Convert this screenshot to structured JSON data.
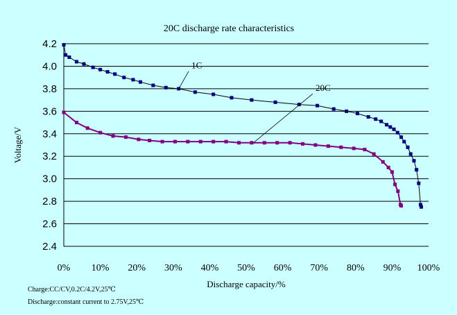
{
  "chart_data": {
    "type": "line",
    "title": "20C discharge rate characteristics",
    "xlabel": "Discharge capacity/%",
    "ylabel": "Voltage/V",
    "xlim": [
      0,
      100
    ],
    "ylim": [
      2.4,
      4.2
    ],
    "x_ticks": [
      "0%",
      "10%",
      "20%",
      "30%",
      "40%",
      "50%",
      "60%",
      "70%",
      "80%",
      "90%",
      "100%"
    ],
    "y_ticks": [
      "4.2",
      "4.0",
      "3.8",
      "3.6",
      "3.4",
      "3.2",
      "3.0",
      "2.8",
      "2.6",
      "2.4"
    ],
    "grid": "horizontal",
    "series": [
      {
        "name": "1C",
        "color": "#000080",
        "marker": "square",
        "points": [
          [
            0.0,
            4.19
          ],
          [
            0.5,
            4.1
          ],
          [
            1.5,
            4.08
          ],
          [
            3.5,
            4.04
          ],
          [
            5.5,
            4.02
          ],
          [
            8,
            3.99
          ],
          [
            10,
            3.97
          ],
          [
            12,
            3.95
          ],
          [
            14,
            3.93
          ],
          [
            16.5,
            3.9
          ],
          [
            19,
            3.88
          ],
          [
            21,
            3.86
          ],
          [
            24.5,
            3.83
          ],
          [
            28,
            3.81
          ],
          [
            31.5,
            3.8
          ],
          [
            36,
            3.77
          ],
          [
            41,
            3.75
          ],
          [
            46,
            3.72
          ],
          [
            51.5,
            3.7
          ],
          [
            58,
            3.68
          ],
          [
            64.5,
            3.66
          ],
          [
            69.5,
            3.65
          ],
          [
            74,
            3.62
          ],
          [
            77.5,
            3.6
          ],
          [
            80.5,
            3.58
          ],
          [
            83.5,
            3.55
          ],
          [
            85.5,
            3.53
          ],
          [
            87,
            3.51
          ],
          [
            88.5,
            3.48
          ],
          [
            89.5,
            3.46
          ],
          [
            90.5,
            3.44
          ],
          [
            91.5,
            3.41
          ],
          [
            92.5,
            3.37
          ],
          [
            93.3,
            3.33
          ],
          [
            94.3,
            3.28
          ],
          [
            95.1,
            3.22
          ],
          [
            96,
            3.16
          ],
          [
            96.7,
            3.08
          ],
          [
            97.3,
            2.96
          ],
          [
            97.8,
            2.77
          ],
          [
            98.0,
            2.75
          ]
        ]
      },
      {
        "name": "20C",
        "color": "#800080",
        "marker": "square",
        "points": [
          [
            0.0,
            3.59
          ],
          [
            3.5,
            3.5
          ],
          [
            6.5,
            3.45
          ],
          [
            10,
            3.41
          ],
          [
            13.5,
            3.38
          ],
          [
            17,
            3.37
          ],
          [
            20.5,
            3.35
          ],
          [
            23.5,
            3.34
          ],
          [
            27,
            3.33
          ],
          [
            30.5,
            3.33
          ],
          [
            34,
            3.33
          ],
          [
            37.5,
            3.33
          ],
          [
            41,
            3.33
          ],
          [
            44.5,
            3.33
          ],
          [
            48,
            3.32
          ],
          [
            51.5,
            3.32
          ],
          [
            55,
            3.32
          ],
          [
            58.5,
            3.32
          ],
          [
            62,
            3.32
          ],
          [
            65.5,
            3.31
          ],
          [
            69,
            3.3
          ],
          [
            72.5,
            3.29
          ],
          [
            76,
            3.28
          ],
          [
            79.5,
            3.27
          ],
          [
            82.5,
            3.26
          ],
          [
            85,
            3.22
          ],
          [
            87.5,
            3.15
          ],
          [
            89,
            3.1
          ],
          [
            90,
            3.06
          ],
          [
            90.8,
            2.95
          ],
          [
            91.6,
            2.89
          ],
          [
            92.3,
            2.77
          ],
          [
            92.5,
            2.76
          ]
        ]
      }
    ],
    "annotations": [
      {
        "text": "1C",
        "x": 35,
        "y": 3.98,
        "target": [
          31.5,
          3.8
        ]
      },
      {
        "text": "20C",
        "x": 69,
        "y": 3.78,
        "target": [
          52,
          3.32
        ]
      }
    ]
  },
  "notes": [
    "Charge:CC/CV,0.2C/4.2V,25℃",
    "Discharge:constant current to 2.75V,25℃"
  ]
}
